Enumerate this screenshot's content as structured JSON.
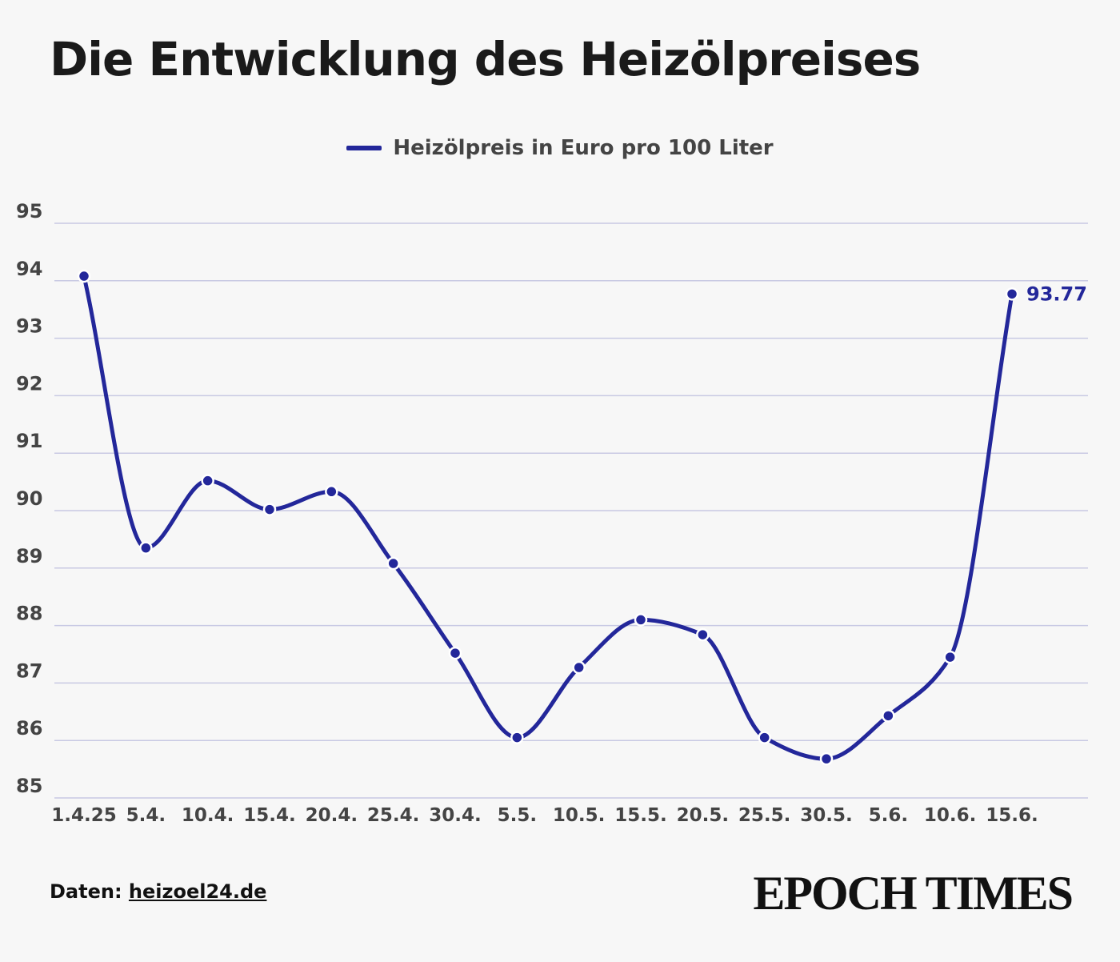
{
  "title": "Die Entwicklung des Heizölpreises",
  "legend": {
    "label": "Heizölpreis in Euro pro 100 Liter",
    "color": "#23279a"
  },
  "source": {
    "prefix": "Daten:",
    "link_text": "heizoel24.de"
  },
  "brand": "EPOCH TIMES",
  "colors": {
    "series": "#23279a",
    "grid": "#c8c9e3",
    "axis_text": "#444444",
    "background": "#f7f7f7"
  },
  "chart_data": {
    "type": "line",
    "title": "Die Entwicklung des Heizölpreises",
    "xlabel": "",
    "ylabel": "",
    "ylim": [
      85,
      95
    ],
    "yticks": [
      "85",
      "86",
      "87",
      "88",
      "89",
      "90",
      "91",
      "92",
      "93",
      "94",
      "95"
    ],
    "grid": true,
    "legend_position": "top-center",
    "categories": [
      "1.4.25",
      "5.4.",
      "10.4.",
      "15.4.",
      "20.4.",
      "25.4.",
      "30.4.",
      "5.5.",
      "10.5.",
      "15.5.",
      "20.5.",
      "25.5.",
      "30.5.",
      "5.6.",
      "10.6.",
      "15.6."
    ],
    "series": [
      {
        "name": "Heizölpreis in Euro pro 100 Liter",
        "values": [
          94.08,
          89.35,
          90.52,
          90.02,
          90.33,
          89.08,
          87.52,
          86.05,
          87.27,
          88.1,
          87.84,
          86.05,
          85.68,
          86.43,
          87.45,
          93.77
        ]
      }
    ],
    "annotations": [
      {
        "label": "93.77",
        "category": "15.6."
      }
    ]
  }
}
